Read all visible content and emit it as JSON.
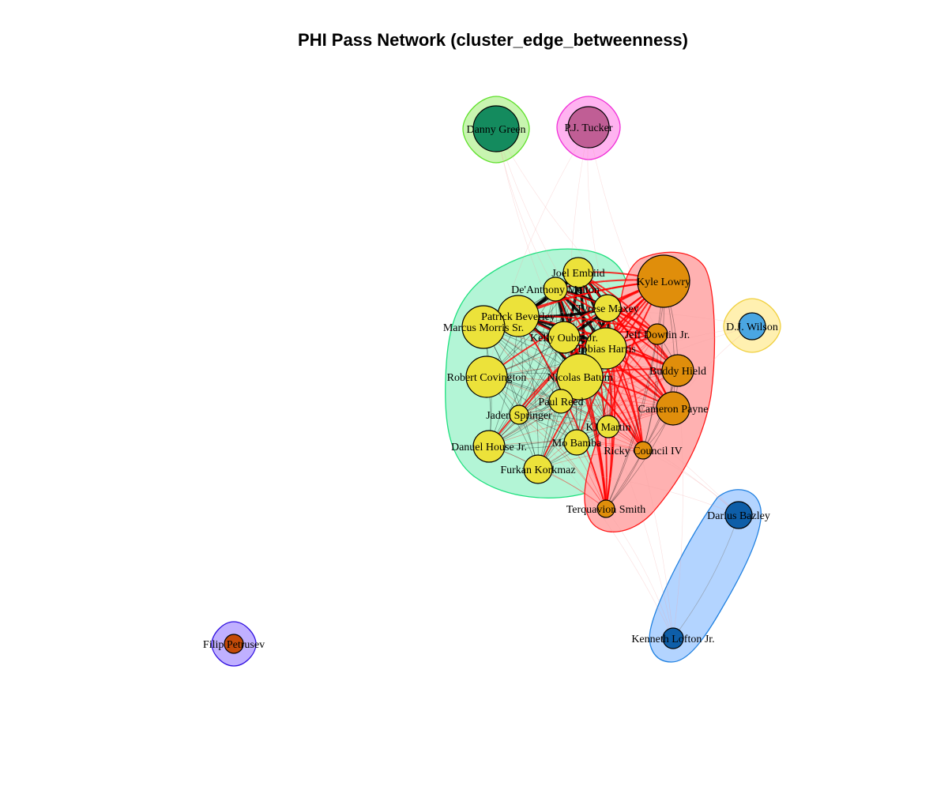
{
  "title": "PHI Pass Network (cluster_edge_betweenness)",
  "clusters": [
    {
      "id": "c1",
      "fill": "#b3f5d6",
      "stroke": "#1ee07e",
      "members": [
        "Joel Embiid",
        "De'Anthony Melton",
        "Tyrese Maxey",
        "Patrick Beverley",
        "Marcus Morris Sr.",
        "Kelly Oubre Jr.",
        "Tobias Harris",
        "Robert Covington",
        "Nicolas Batum",
        "Paul Reed",
        "Jaden Springer",
        "KJ Martin",
        "Mo Bamba",
        "Danuel House Jr.",
        "Furkan Korkmaz"
      ]
    },
    {
      "id": "c2",
      "fill": "#ffb1b1",
      "stroke": "#ff1a1a",
      "members": [
        "Kyle Lowry",
        "Jeff Dowtin Jr.",
        "Buddy Hield",
        "Cameron Payne",
        "Ricky Council IV",
        "Terquavion Smith"
      ]
    },
    {
      "id": "c3",
      "fill": "#c8f5b0",
      "stroke": "#5ee02a",
      "members": [
        "Danny Green"
      ]
    },
    {
      "id": "c4",
      "fill": "#ffb3f0",
      "stroke": "#f030d8",
      "members": [
        "P.J. Tucker"
      ]
    },
    {
      "id": "c5",
      "fill": "#fff0b0",
      "stroke": "#f0d040",
      "members": [
        "D.J. Wilson"
      ]
    },
    {
      "id": "c6",
      "fill": "#b3d4ff",
      "stroke": "#2080e0",
      "members": [
        "Darius Bazley",
        "Kenneth Lofton Jr."
      ]
    },
    {
      "id": "c7",
      "fill": "#c0b0ff",
      "stroke": "#3010e0",
      "members": [
        "Filip Petrusev"
      ]
    }
  ],
  "nodes": [
    {
      "label": "Joel Embiid",
      "color": "#ece23a"
    },
    {
      "label": "De'Anthony Melton",
      "color": "#ece23a"
    },
    {
      "label": "Tyrese Maxey",
      "color": "#ece23a"
    },
    {
      "label": "Patrick Beverley",
      "color": "#ece23a"
    },
    {
      "label": "Marcus Morris Sr.",
      "color": "#ece23a"
    },
    {
      "label": "Kelly Oubre Jr.",
      "color": "#ece23a"
    },
    {
      "label": "Tobias Harris",
      "color": "#ece23a"
    },
    {
      "label": "Robert Covington",
      "color": "#ece23a"
    },
    {
      "label": "Nicolas Batum",
      "color": "#ece23a"
    },
    {
      "label": "Paul Reed",
      "color": "#ece23a"
    },
    {
      "label": "Jaden Springer",
      "color": "#ece23a"
    },
    {
      "label": "KJ Martin",
      "color": "#ece23a"
    },
    {
      "label": "Mo Bamba",
      "color": "#ece23a"
    },
    {
      "label": "Danuel House Jr.",
      "color": "#ece23a"
    },
    {
      "label": "Furkan Korkmaz",
      "color": "#ece23a"
    },
    {
      "label": "Kyle Lowry",
      "color": "#e08e0b"
    },
    {
      "label": "Jeff Dowtin Jr.",
      "color": "#e08e0b"
    },
    {
      "label": "Buddy Hield",
      "color": "#e08e0b"
    },
    {
      "label": "Cameron Payne",
      "color": "#e08e0b"
    },
    {
      "label": "Ricky Council IV",
      "color": "#e08e0b"
    },
    {
      "label": "Terquavion Smith",
      "color": "#e08e0b"
    },
    {
      "label": "Danny Green",
      "color": "#148b5e"
    },
    {
      "label": "P.J. Tucker",
      "color": "#c05e95"
    },
    {
      "label": "D.J. Wilson",
      "color": "#4aa6e2"
    },
    {
      "label": "Darius Bazley",
      "color": "#0e5ea8"
    },
    {
      "label": "Kenneth Lofton Jr.",
      "color": "#0e5ea8"
    },
    {
      "label": "Filip Petrusev",
      "color": "#c44a08"
    }
  ],
  "edge_colors": {
    "intra": "#000000",
    "inter": "#ff0000"
  }
}
